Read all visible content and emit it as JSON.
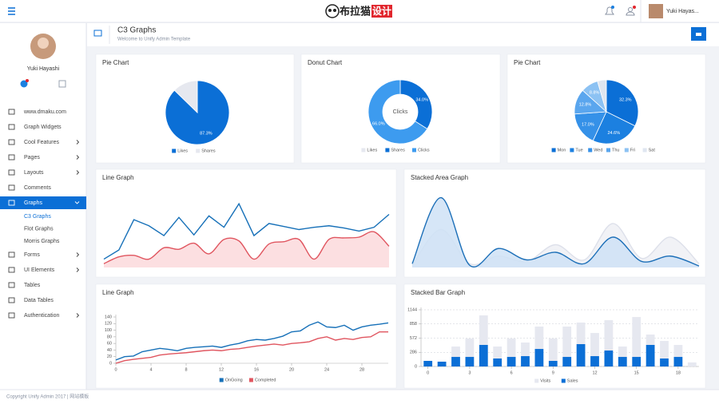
{
  "header": {
    "logo_main": "布拉猫",
    "logo_tag": "设计",
    "user": "Yuki Hayas..."
  },
  "sidebar": {
    "name": "Yuki Hayashi",
    "menu": [
      {
        "label": "www.dmaku.com"
      },
      {
        "label": "Graph Widgets"
      },
      {
        "label": "Cool Features",
        "submenu": true
      },
      {
        "label": "Pages",
        "submenu": true
      },
      {
        "label": "Layouts",
        "submenu": true
      },
      {
        "label": "Comments"
      },
      {
        "label": "Graphs",
        "submenu": true,
        "active": true,
        "children": [
          "C3 Graphs",
          "Flot Graphs",
          "Morris Graphs"
        ]
      },
      {
        "label": "Forms",
        "submenu": true
      },
      {
        "label": "UI Elements",
        "submenu": true
      },
      {
        "label": "Tables"
      },
      {
        "label": "Data Tables"
      },
      {
        "label": "Authentication",
        "submenu": true
      }
    ]
  },
  "page": {
    "title": "C3 Graphs",
    "subtitle": "Welcome to Unify Admin Template"
  },
  "charts": [
    {
      "type": "pie",
      "title": "Pie Chart",
      "categories": [
        "Likes",
        "Shares"
      ],
      "values": [
        87.3,
        12.7
      ],
      "value_labels": [
        "87.3%",
        null
      ],
      "colors": [
        "#0b6fd6",
        "#e6e8ef"
      ]
    },
    {
      "type": "donut",
      "title": "Donut Chart",
      "donut_title": "Clicks",
      "categories": [
        "Likes",
        "Shares",
        "Clicks"
      ],
      "values": [
        0,
        34,
        66
      ],
      "value_labels": [
        null,
        "34.0%",
        "66.0%"
      ],
      "colors": [
        "#e6e8ef",
        "#0b6fd6",
        "#3d9bef"
      ]
    },
    {
      "type": "pie",
      "title": "Pie Chart",
      "categories": [
        "Mon",
        "Tue",
        "Wed",
        "Thu",
        "Fri",
        "Sat"
      ],
      "values": [
        32.3,
        24.6,
        17.0,
        12.8,
        8.8,
        4.5
      ],
      "value_labels": [
        "32.3%",
        "24.6%",
        "17.0%",
        "12.8%",
        "8.8%",
        null
      ],
      "colors": [
        "#0b6fd6",
        "#1c80e0",
        "#3591e8",
        "#5aa6ee",
        "#8cc2f3",
        "#dfe6f0"
      ]
    },
    {
      "type": "line",
      "title": "Line Graph",
      "ylim": [
        0,
        100
      ],
      "series": [
        {
          "color": "#1670b8",
          "values": [
            11,
            23,
            63,
            55,
            42,
            66,
            43,
            68,
            53,
            84,
            42,
            58,
            54,
            50,
            53,
            55,
            52,
            48,
            53,
            70
          ]
        },
        {
          "color": "#e0555f",
          "fill": "#fcd9dc",
          "spline": true,
          "values": [
            5,
            14,
            16,
            11,
            26,
            24,
            32,
            18,
            37,
            35,
            11,
            31,
            34,
            37,
            11,
            37,
            39,
            40,
            47,
            28
          ]
        }
      ]
    },
    {
      "type": "line",
      "title": "Stacked Area Graph",
      "ylim": [
        0,
        100
      ],
      "series": [
        {
          "color": "#dde0ea",
          "fill": "#eef0f5",
          "spline": true,
          "values": [
            3,
            50,
            5,
            15,
            8,
            30,
            10,
            58,
            12,
            40,
            5
          ]
        },
        {
          "color": "#1c6fb8",
          "fill": "#cfe2f6",
          "spline": true,
          "values": [
            5,
            92,
            3,
            25,
            10,
            20,
            5,
            40,
            8,
            15,
            2
          ]
        }
      ]
    },
    {
      "type": "line",
      "title": "Line Graph",
      "legend": "bottom",
      "x": [
        0,
        1,
        2,
        3,
        4,
        5,
        6,
        7,
        8,
        9,
        10,
        11,
        12,
        13,
        14,
        15,
        16,
        17,
        18,
        19,
        20,
        21,
        22,
        23,
        24,
        25,
        26,
        27,
        28,
        29,
        30,
        31
      ],
      "xlim": [
        0,
        31
      ],
      "xticks": [
        0,
        4,
        8,
        12,
        16,
        20,
        24,
        28
      ],
      "ylim": [
        0,
        140
      ],
      "yticks": [
        0,
        20,
        40,
        60,
        80,
        100,
        120,
        140
      ],
      "series": [
        {
          "name": "OnGoing",
          "color": "#1670b8",
          "values": [
            10,
            20,
            22,
            35,
            40,
            45,
            42,
            38,
            45,
            48,
            50,
            52,
            48,
            55,
            60,
            68,
            72,
            70,
            75,
            82,
            95,
            98,
            115,
            125,
            110,
            108,
            115,
            100,
            110,
            115,
            118,
            122
          ]
        },
        {
          "name": "Completed",
          "color": "#e0555f",
          "values": [
            0,
            8,
            12,
            15,
            18,
            25,
            28,
            30,
            32,
            35,
            38,
            40,
            38,
            42,
            44,
            48,
            52,
            55,
            58,
            55,
            60,
            62,
            65,
            75,
            80,
            70,
            75,
            72,
            78,
            80,
            95,
            95
          ]
        }
      ]
    },
    {
      "type": "bar",
      "title": "Stacked Bar Graph",
      "stacked": true,
      "grid": true,
      "legend": "bottom",
      "x": [
        0,
        1,
        2,
        3,
        4,
        5,
        6,
        7,
        8,
        9,
        10,
        11,
        12,
        13,
        14,
        15,
        16,
        17,
        18,
        19
      ],
      "xlim": [
        -0.5,
        19.5
      ],
      "xticks": [
        0,
        3,
        6,
        9,
        12,
        15,
        18
      ],
      "ylim": [
        0,
        1144
      ],
      "yticks": [
        0,
        286,
        572,
        858,
        1144
      ],
      "series": [
        {
          "name": "Visits",
          "color": "#e6e8f0",
          "values": [
            0,
            0,
            209,
            370,
            596,
            242,
            370,
            274,
            451,
            451,
            612,
            435,
            467,
            612,
            209,
            805,
            209,
            354,
            242,
            81
          ]
        },
        {
          "name": "Sales",
          "color": "#0b6fd6",
          "values": [
            113,
            97,
            193,
            193,
            435,
            161,
            193,
            209,
            354,
            113,
            193,
            451,
            209,
            322,
            193,
            193,
            435,
            161,
            193,
            0
          ]
        }
      ]
    }
  ],
  "footer": {
    "text": "Copyright Unify Admin 2017 | 网站模板"
  }
}
